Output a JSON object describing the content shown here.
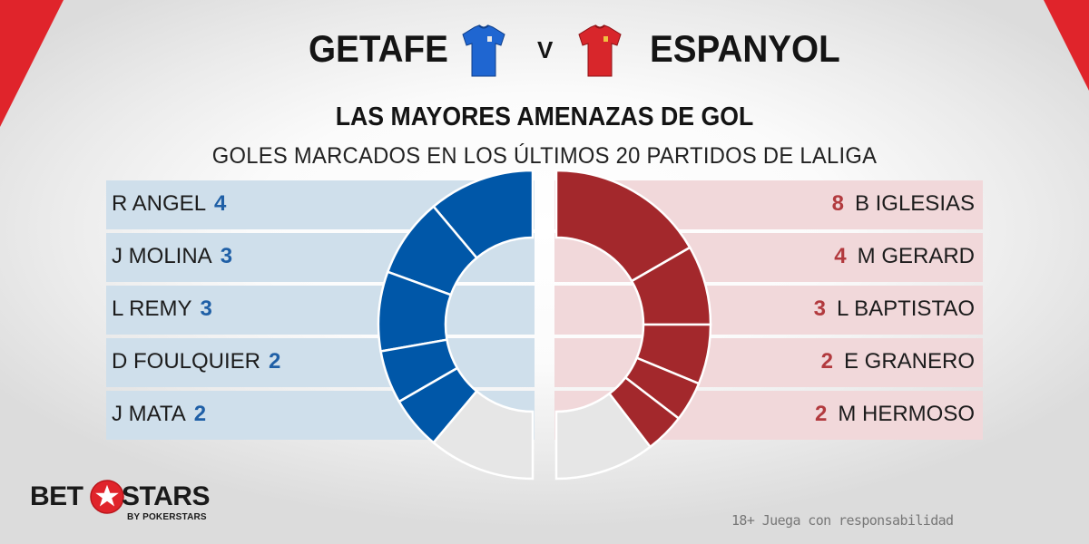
{
  "header": {
    "home_team": "GETAFE",
    "versus": "V",
    "away_team": "ESPANYOL"
  },
  "chart_data": {
    "type": "pie",
    "title": "LAS MAYORES AMENAZAS DE GOL",
    "subtitle": "GOLES MARCADOS EN LOS ÚLTIMOS 20 PARTIDOS DE LALIGA",
    "series": [
      {
        "team": "GETAFE",
        "color": "#0057a8",
        "players": [
          {
            "name": "R ANGEL",
            "goals": 4
          },
          {
            "name": "J MOLINA",
            "goals": 3
          },
          {
            "name": "L REMY",
            "goals": 3
          },
          {
            "name": "D FOULQUIER",
            "goals": 2
          },
          {
            "name": "J MATA",
            "goals": 2
          }
        ],
        "other_goals": 4
      },
      {
        "team": "ESPANYOL",
        "color": "#a3282c",
        "players": [
          {
            "name": "B IGLESIAS",
            "goals": 8
          },
          {
            "name": "M GERARD",
            "goals": 4
          },
          {
            "name": "L BAPTISTAO",
            "goals": 3
          },
          {
            "name": "E GRANERO",
            "goals": 2
          },
          {
            "name": "M HERMOSO",
            "goals": 2
          }
        ],
        "other_goals": 5
      }
    ]
  },
  "colors": {
    "home_accent": "#0057a8",
    "away_accent": "#a3282c",
    "home_row_bg": "#cfdfeb",
    "away_row_bg": "#f1d8da",
    "other_segment": "#e6e6e6",
    "corner_red": "#e0242b"
  },
  "brand": {
    "bet": "BET",
    "stars": "STARS",
    "sub": "BY POKERSTARS"
  },
  "disclaimer": "18+ Juega con responsabilidad"
}
